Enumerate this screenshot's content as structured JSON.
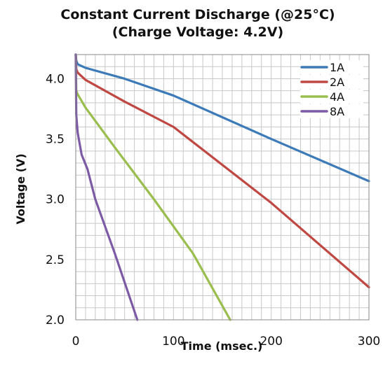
{
  "chart_data": {
    "type": "line",
    "title": "Constant Current Discharge (@25°C)",
    "subtitle": "(Charge Voltage: 4.2V)",
    "xlabel": "Time (msec.)",
    "ylabel": "Voltage (V)",
    "xlim": [
      0,
      300
    ],
    "ylim": [
      2.0,
      4.2
    ],
    "x_ticks": [
      "0",
      "100",
      "200",
      "300"
    ],
    "y_ticks": [
      "2.0",
      "2.5",
      "3.0",
      "3.5",
      "4.0"
    ],
    "x_tick_values": [
      0,
      100,
      200,
      300
    ],
    "y_tick_values": [
      2.0,
      2.5,
      3.0,
      3.5,
      4.0
    ],
    "x_minor_step": 10,
    "y_minor_step": 0.1,
    "grid": true,
    "legend_position": "top-right",
    "series": [
      {
        "name": "1A",
        "color": "#3c7ab8",
        "points": [
          [
            0,
            4.2
          ],
          [
            0.5,
            4.15
          ],
          [
            2,
            4.12
          ],
          [
            10,
            4.09
          ],
          [
            50,
            4.0
          ],
          [
            100,
            3.86
          ],
          [
            200,
            3.5
          ],
          [
            300,
            3.15
          ]
        ]
      },
      {
        "name": "2A",
        "color": "#bf4843",
        "points": [
          [
            0,
            4.2
          ],
          [
            0.5,
            4.08
          ],
          [
            2,
            4.05
          ],
          [
            10,
            3.99
          ],
          [
            50,
            3.81
          ],
          [
            100,
            3.6
          ],
          [
            200,
            2.97
          ],
          [
            300,
            2.27
          ]
        ]
      },
      {
        "name": "4A",
        "color": "#99be4e",
        "points": [
          [
            0,
            4.2
          ],
          [
            0.5,
            3.9
          ],
          [
            2,
            3.87
          ],
          [
            10,
            3.76
          ],
          [
            40,
            3.43
          ],
          [
            80,
            3.0
          ],
          [
            120,
            2.55
          ],
          [
            158,
            2.0
          ]
        ]
      },
      {
        "name": "8A",
        "color": "#7d5aa6",
        "points": [
          [
            0,
            4.2
          ],
          [
            0.5,
            3.7
          ],
          [
            2,
            3.55
          ],
          [
            6,
            3.37
          ],
          [
            12,
            3.25
          ],
          [
            20,
            3.0
          ],
          [
            40,
            2.55
          ],
          [
            63,
            2.0
          ]
        ]
      }
    ]
  }
}
